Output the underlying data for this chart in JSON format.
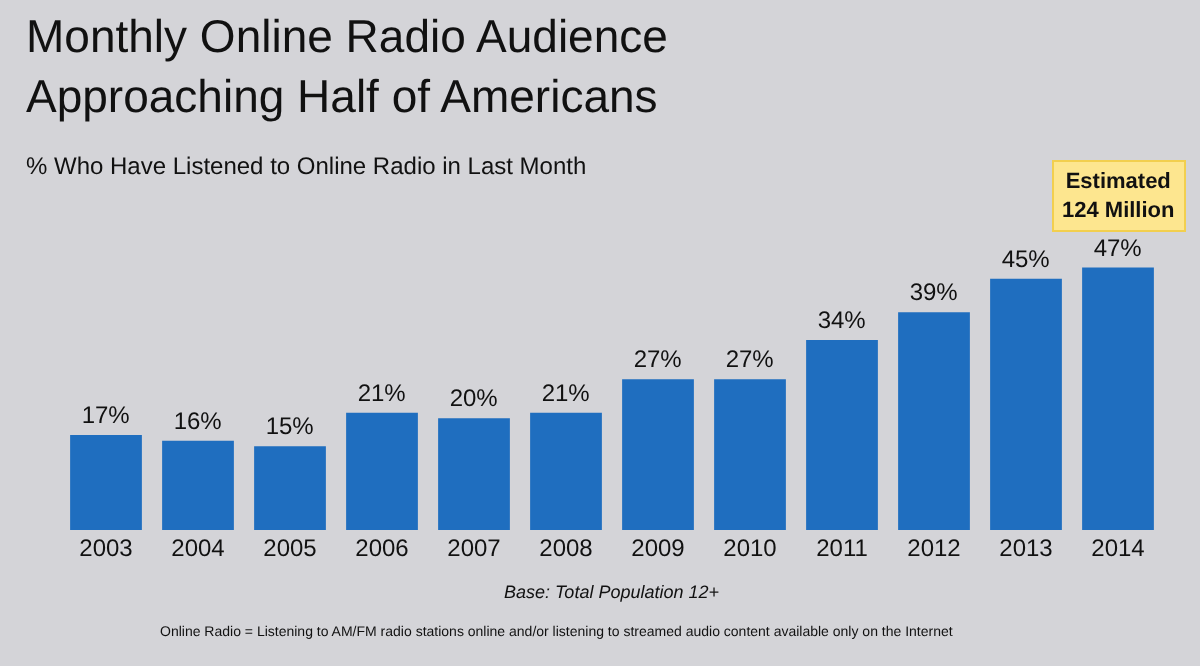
{
  "chart_data": {
    "type": "bar",
    "title": "Monthly Online Radio Audience\nApproaching Half of Americans",
    "subtitle": "% Who Have Listened to Online Radio in Last Month",
    "categories": [
      "2003",
      "2004",
      "2005",
      "2006",
      "2007",
      "2008",
      "2009",
      "2010",
      "2011",
      "2012",
      "2013",
      "2014"
    ],
    "values": [
      17,
      16,
      15,
      21,
      20,
      21,
      27,
      27,
      34,
      39,
      45,
      47
    ],
    "value_labels": [
      "17%",
      "16%",
      "15%",
      "21%",
      "20%",
      "21%",
      "27%",
      "27%",
      "34%",
      "39%",
      "45%",
      "47%"
    ],
    "color": "#1f6ebf",
    "annotations": [
      {
        "text": "Estimated\n124 Million",
        "x": "2014",
        "y": 47
      },
      "Base: Total Population 12+",
      "Online Radio = Listening to AM/FM radio stations online and/or listening to streamed audio content available only on the Internet"
    ]
  }
}
